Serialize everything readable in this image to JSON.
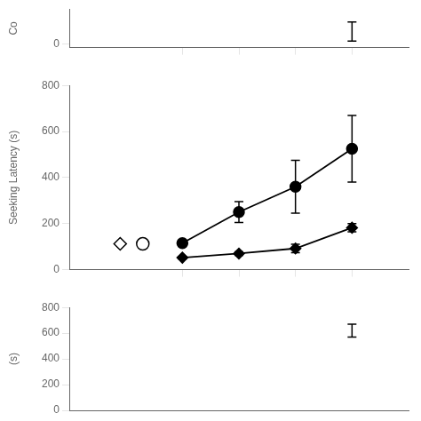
{
  "chart_data": [
    {
      "type": "scatter",
      "ylabel": "Co",
      "xlim": [
        0,
        6
      ],
      "xticks": [
        2,
        3,
        4,
        5
      ],
      "ylim": [
        -5,
        55
      ],
      "yticks": [
        0
      ],
      "grid": false,
      "tick_labels": "y",
      "series": [
        {
          "x": [
            5
          ],
          "values": [
            20
          ],
          "yerr": [
            15
          ],
          "color": "#000000",
          "marker": "none",
          "line_style": "none"
        }
      ]
    },
    {
      "type": "line",
      "ylabel": "Seeking Latency (s)",
      "xlim": [
        0,
        6
      ],
      "xticks": [
        2,
        3,
        4,
        5
      ],
      "ylim": [
        0,
        800
      ],
      "yticks": [
        0,
        200,
        400,
        600,
        800
      ],
      "grid": false,
      "tick_labels": "y",
      "series": [
        {
          "x": [
            2,
            3,
            4,
            5
          ],
          "values": [
            115,
            250,
            360,
            525
          ],
          "yerr": [
            10,
            45,
            115,
            145
          ],
          "color": "#000000",
          "marker": "circle",
          "line_style": "solid"
        },
        {
          "x": [
            2,
            3,
            4,
            5
          ],
          "values": [
            52,
            70,
            92,
            182
          ],
          "yerr": [
            5,
            8,
            18,
            18
          ],
          "color": "#000000",
          "marker": "diamond",
          "line_style": "solid"
        },
        {
          "type": "scatter",
          "x": [
            0.9
          ],
          "values": [
            112
          ],
          "color": "#000000",
          "marker": "open-diamond",
          "line_style": "none"
        },
        {
          "type": "scatter",
          "x": [
            1.3
          ],
          "values": [
            112
          ],
          "color": "#000000",
          "marker": "open-circle",
          "line_style": "none"
        }
      ]
    },
    {
      "type": "scatter",
      "ylabel": "(s)",
      "xlim": [
        0,
        6
      ],
      "ylim": [
        0,
        800
      ],
      "yticks": [
        0,
        200,
        400,
        600,
        800
      ],
      "grid": false,
      "tick_labels": "y",
      "series": [
        {
          "x": [
            5
          ],
          "values": [
            620
          ],
          "yerr": [
            50
          ],
          "color": "#000000",
          "marker": "none",
          "line_style": "none"
        }
      ]
    }
  ]
}
